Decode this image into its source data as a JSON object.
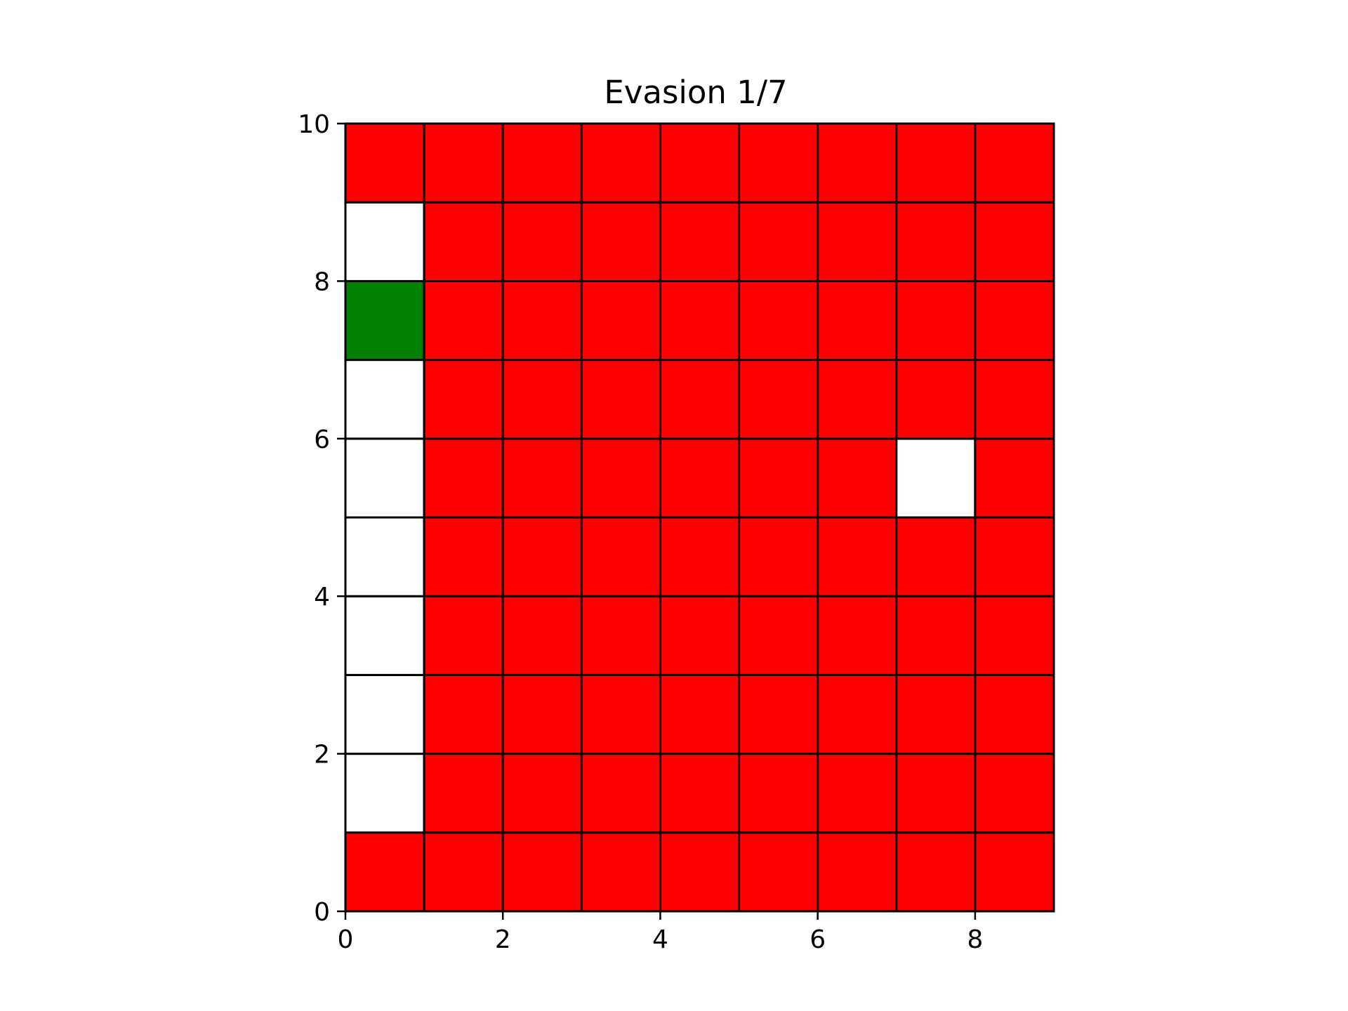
{
  "chart_data": {
    "type": "heatmap",
    "title": "Evasion 1/7",
    "xlabel": "",
    "ylabel": "",
    "xlim": [
      0,
      9
    ],
    "ylim": [
      0,
      10
    ],
    "x_ticks": [
      "0",
      "2",
      "4",
      "6",
      "8"
    ],
    "y_ticks": [
      "0",
      "2",
      "4",
      "6",
      "8",
      "10"
    ],
    "grid": false,
    "colors": {
      "red": "#ff0000",
      "white": "#ffffff",
      "green": "#008000",
      "edge": "#000000"
    },
    "rows_bottom_to_top": [
      [
        "red",
        "red",
        "red",
        "red",
        "red",
        "red",
        "red",
        "red",
        "red"
      ],
      [
        "white",
        "red",
        "red",
        "red",
        "red",
        "red",
        "red",
        "red",
        "red"
      ],
      [
        "white",
        "red",
        "red",
        "red",
        "red",
        "red",
        "red",
        "red",
        "red"
      ],
      [
        "white",
        "red",
        "red",
        "red",
        "red",
        "red",
        "red",
        "red",
        "red"
      ],
      [
        "white",
        "red",
        "red",
        "red",
        "red",
        "red",
        "red",
        "red",
        "red"
      ],
      [
        "white",
        "red",
        "red",
        "red",
        "red",
        "red",
        "red",
        "white",
        "red"
      ],
      [
        "white",
        "red",
        "red",
        "red",
        "red",
        "red",
        "red",
        "red",
        "red"
      ],
      [
        "green",
        "red",
        "red",
        "red",
        "red",
        "red",
        "red",
        "red",
        "red"
      ],
      [
        "white",
        "red",
        "red",
        "red",
        "red",
        "red",
        "red",
        "red",
        "red"
      ],
      [
        "red",
        "red",
        "red",
        "red",
        "red",
        "red",
        "red",
        "red",
        "red"
      ]
    ]
  }
}
